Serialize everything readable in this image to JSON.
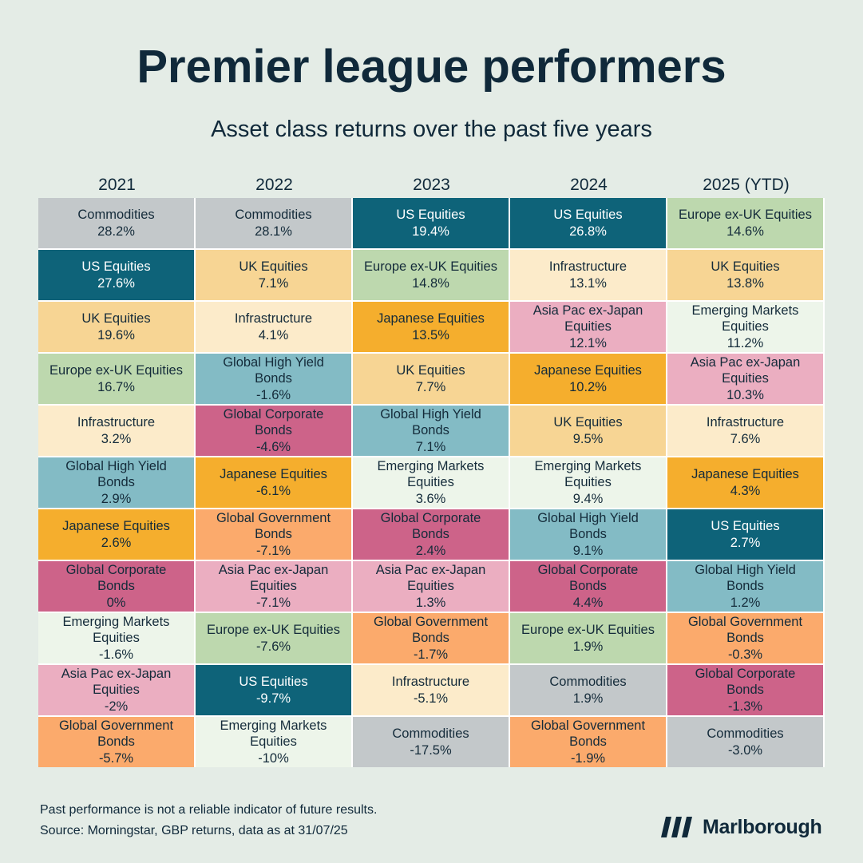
{
  "header": {
    "title": "Premier league performers",
    "subtitle": "Asset class returns over the past five years"
  },
  "colors": {
    "Commodities": "#c3c8ca",
    "US Equities": "#0e6379",
    "UK Equities": "#f7d594",
    "Europe ex-UK Equities": "#bdd8ae",
    "Infrastructure": "#fcebca",
    "Global High Yield Bonds": "#83bbc5",
    "Japanese Equities": "#f5ae2d",
    "Global Corporate Bonds": "#cd6389",
    "Emerging Markets Equities": "#edf5ea",
    "Asia Pac ex-Japan Equities": "#ebaec1",
    "Global Government Bonds": "#fbaa6c"
  },
  "chart_data": {
    "type": "table",
    "columns": [
      {
        "year": "2021",
        "rows": [
          {
            "asset": "Commodities",
            "lines": [
              "Commodities"
            ],
            "value": "28.2%"
          },
          {
            "asset": "US Equities",
            "lines": [
              "US Equities"
            ],
            "value": "27.6%"
          },
          {
            "asset": "UK Equities",
            "lines": [
              "UK Equities"
            ],
            "value": "19.6%"
          },
          {
            "asset": "Europe ex-UK Equities",
            "lines": [
              "Europe ex-UK Equities"
            ],
            "value": "16.7%"
          },
          {
            "asset": "Infrastructure",
            "lines": [
              "Infrastructure"
            ],
            "value": "3.2%"
          },
          {
            "asset": "Global High Yield Bonds",
            "lines": [
              "Global High Yield",
              "Bonds"
            ],
            "value": "2.9%"
          },
          {
            "asset": "Japanese Equities",
            "lines": [
              "Japanese Equities"
            ],
            "value": "2.6%"
          },
          {
            "asset": "Global Corporate Bonds",
            "lines": [
              "Global Corporate",
              "Bonds"
            ],
            "value": "0%"
          },
          {
            "asset": "Emerging Markets Equities",
            "lines": [
              "Emerging Markets",
              "Equities"
            ],
            "value": "-1.6%"
          },
          {
            "asset": "Asia Pac ex-Japan Equities",
            "lines": [
              "Asia Pac ex-Japan",
              "Equities"
            ],
            "value": "-2%"
          },
          {
            "asset": "Global Government Bonds",
            "lines": [
              "Global Government",
              "Bonds"
            ],
            "value": "-5.7%"
          }
        ]
      },
      {
        "year": "2022",
        "rows": [
          {
            "asset": "Commodities",
            "lines": [
              "Commodities"
            ],
            "value": "28.1%"
          },
          {
            "asset": "UK Equities",
            "lines": [
              "UK Equities"
            ],
            "value": "7.1%"
          },
          {
            "asset": "Infrastructure",
            "lines": [
              "Infrastructure"
            ],
            "value": "4.1%"
          },
          {
            "asset": "Global High Yield Bonds",
            "lines": [
              "Global High Yield",
              "Bonds"
            ],
            "value": "-1.6%"
          },
          {
            "asset": "Global Corporate Bonds",
            "lines": [
              "Global Corporate",
              "Bonds"
            ],
            "value": "-4.6%"
          },
          {
            "asset": "Japanese Equities",
            "lines": [
              "Japanese Equities"
            ],
            "value": "-6.1%"
          },
          {
            "asset": "Global Government Bonds",
            "lines": [
              "Global Government",
              "Bonds"
            ],
            "value": "-7.1%"
          },
          {
            "asset": "Asia Pac ex-Japan Equities",
            "lines": [
              "Asia Pac ex-Japan",
              "Equities"
            ],
            "value": "-7.1%"
          },
          {
            "asset": "Europe ex-UK Equities",
            "lines": [
              "Europe ex-UK Equities"
            ],
            "value": "-7.6%"
          },
          {
            "asset": "US Equities",
            "lines": [
              "US Equities"
            ],
            "value": "-9.7%"
          },
          {
            "asset": "Emerging Markets Equities",
            "lines": [
              "Emerging Markets",
              "Equities"
            ],
            "value": "-10%"
          }
        ]
      },
      {
        "year": "2023",
        "rows": [
          {
            "asset": "US Equities",
            "lines": [
              "US Equities"
            ],
            "value": "19.4%"
          },
          {
            "asset": "Europe ex-UK Equities",
            "lines": [
              "Europe ex-UK Equities"
            ],
            "value": "14.8%"
          },
          {
            "asset": "Japanese Equities",
            "lines": [
              "Japanese Equities"
            ],
            "value": "13.5%"
          },
          {
            "asset": "UK Equities",
            "lines": [
              "UK Equities"
            ],
            "value": "7.7%"
          },
          {
            "asset": "Global High Yield Bonds",
            "lines": [
              "Global High Yield",
              "Bonds"
            ],
            "value": "7.1%"
          },
          {
            "asset": "Emerging Markets Equities",
            "lines": [
              "Emerging Markets",
              "Equities"
            ],
            "value": "3.6%"
          },
          {
            "asset": "Global Corporate Bonds",
            "lines": [
              "Global Corporate",
              "Bonds"
            ],
            "value": "2.4%"
          },
          {
            "asset": "Asia Pac ex-Japan Equities",
            "lines": [
              "Asia Pac ex-Japan",
              "Equities"
            ],
            "value": "1.3%"
          },
          {
            "asset": "Global Government Bonds",
            "lines": [
              "Global Government",
              "Bonds"
            ],
            "value": "-1.7%"
          },
          {
            "asset": "Infrastructure",
            "lines": [
              "Infrastructure"
            ],
            "value": "-5.1%"
          },
          {
            "asset": "Commodities",
            "lines": [
              "Commodities"
            ],
            "value": "-17.5%"
          }
        ]
      },
      {
        "year": "2024",
        "rows": [
          {
            "asset": "US Equities",
            "lines": [
              "US Equities"
            ],
            "value": "26.8%"
          },
          {
            "asset": "Infrastructure",
            "lines": [
              "Infrastructure"
            ],
            "value": "13.1%"
          },
          {
            "asset": "Asia Pac ex-Japan Equities",
            "lines": [
              "Asia Pac ex-Japan",
              "Equities"
            ],
            "value": "12.1%"
          },
          {
            "asset": "Japanese Equities",
            "lines": [
              "Japanese Equities"
            ],
            "value": "10.2%"
          },
          {
            "asset": "UK Equities",
            "lines": [
              "UK Equities"
            ],
            "value": "9.5%"
          },
          {
            "asset": "Emerging Markets Equities",
            "lines": [
              "Emerging Markets",
              "Equities"
            ],
            "value": "9.4%"
          },
          {
            "asset": "Global High Yield Bonds",
            "lines": [
              "Global High Yield",
              "Bonds"
            ],
            "value": "9.1%"
          },
          {
            "asset": "Global Corporate Bonds",
            "lines": [
              "Global Corporate",
              "Bonds"
            ],
            "value": "4.4%"
          },
          {
            "asset": "Europe ex-UK Equities",
            "lines": [
              "Europe ex-UK Equities"
            ],
            "value": "1.9%"
          },
          {
            "asset": "Commodities",
            "lines": [
              "Commodities"
            ],
            "value": "1.9%"
          },
          {
            "asset": "Global Government Bonds",
            "lines": [
              "Global Government",
              "Bonds"
            ],
            "value": "-1.9%"
          }
        ]
      },
      {
        "year": "2025 (YTD)",
        "rows": [
          {
            "asset": "Europe ex-UK Equities",
            "lines": [
              "Europe ex-UK Equities"
            ],
            "value": "14.6%"
          },
          {
            "asset": "UK Equities",
            "lines": [
              "UK Equities"
            ],
            "value": "13.8%"
          },
          {
            "asset": "Emerging Markets Equities",
            "lines": [
              "Emerging Markets",
              "Equities"
            ],
            "value": "11.2%"
          },
          {
            "asset": "Asia Pac ex-Japan Equities",
            "lines": [
              "Asia Pac ex-Japan",
              "Equities"
            ],
            "value": "10.3%"
          },
          {
            "asset": "Infrastructure",
            "lines": [
              "Infrastructure"
            ],
            "value": "7.6%"
          },
          {
            "asset": "Japanese Equities",
            "lines": [
              "Japanese Equities"
            ],
            "value": "4.3%"
          },
          {
            "asset": "US Equities",
            "lines": [
              "US Equities"
            ],
            "value": "2.7%"
          },
          {
            "asset": "Global High Yield Bonds",
            "lines": [
              "Global High Yield",
              "Bonds"
            ],
            "value": "1.2%"
          },
          {
            "asset": "Global Government Bonds",
            "lines": [
              "Global Government",
              "Bonds"
            ],
            "value": "-0.3%"
          },
          {
            "asset": "Global Corporate Bonds",
            "lines": [
              "Global Corporate",
              "Bonds"
            ],
            "value": "-1.3%"
          },
          {
            "asset": "Commodities",
            "lines": [
              "Commodities"
            ],
            "value": "-3.0%"
          }
        ]
      }
    ]
  },
  "footer": {
    "disclaimer": "Past performance is not a reliable indicator of future results.",
    "source": "Source: Morningstar, GBP returns, data as at 31/07/25"
  },
  "brand": {
    "name": "Marlborough",
    "logo_icon": "marlborough-stripes-icon"
  }
}
